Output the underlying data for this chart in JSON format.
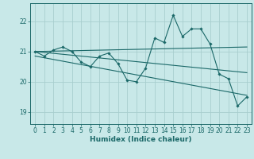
{
  "xlabel": "Humidex (Indice chaleur)",
  "background_color": "#c8e8e8",
  "grid_color": "#a8cece",
  "line_color": "#1a6868",
  "xlim": [
    -0.5,
    23.5
  ],
  "ylim": [
    18.6,
    22.6
  ],
  "yticks": [
    19,
    20,
    21,
    22
  ],
  "xticks": [
    0,
    1,
    2,
    3,
    4,
    5,
    6,
    7,
    8,
    9,
    10,
    11,
    12,
    13,
    14,
    15,
    16,
    17,
    18,
    19,
    20,
    21,
    22,
    23
  ],
  "series1_x": [
    0,
    1,
    2,
    3,
    4,
    5,
    6,
    7,
    8,
    9,
    10,
    11,
    12,
    13,
    14,
    15,
    16,
    17,
    18,
    19,
    20,
    21,
    22,
    23
  ],
  "series1_y": [
    21.0,
    20.85,
    21.05,
    21.15,
    21.0,
    20.65,
    20.5,
    20.85,
    20.95,
    20.6,
    20.05,
    20.0,
    20.45,
    21.45,
    21.3,
    22.2,
    21.5,
    21.75,
    21.75,
    21.25,
    20.25,
    20.1,
    19.2,
    19.5
  ],
  "trend1_x": [
    0,
    23
  ],
  "trend1_y": [
    21.0,
    21.15
  ],
  "trend2_x": [
    0,
    23
  ],
  "trend2_y": [
    21.0,
    20.3
  ],
  "trend3_x": [
    0,
    23
  ],
  "trend3_y": [
    20.85,
    19.55
  ]
}
